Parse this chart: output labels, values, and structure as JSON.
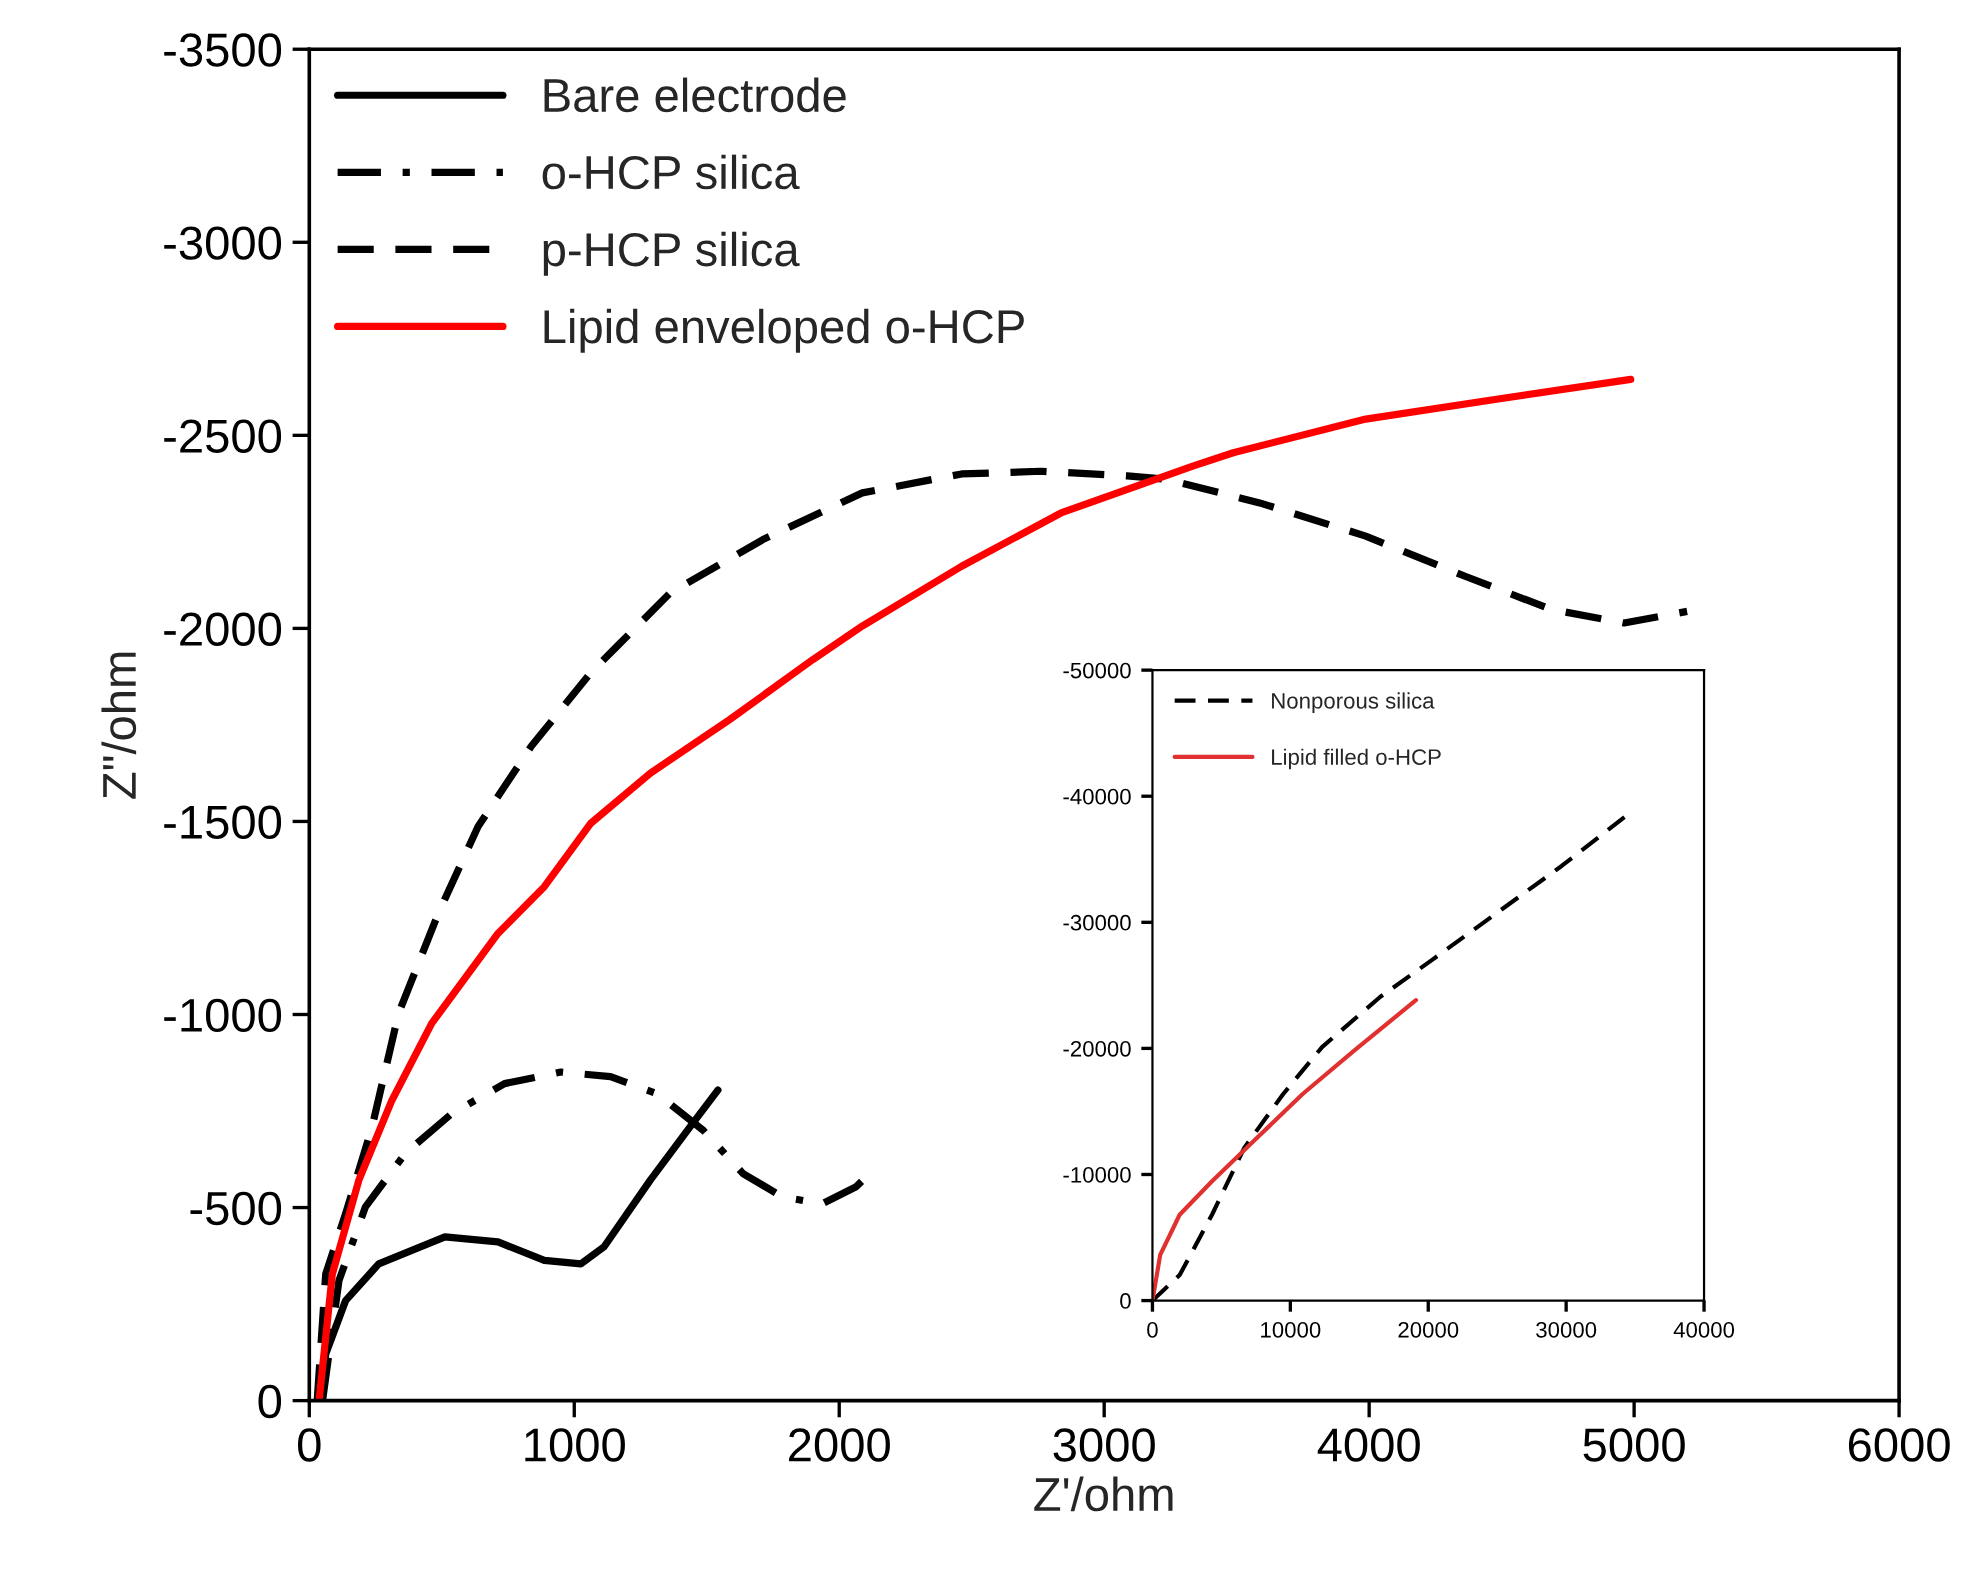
{
  "chart_data": [
    {
      "type": "line",
      "xlabel": "Z'/ohm",
      "ylabel": "Z\"/ohm",
      "xlim": [
        0,
        6000
      ],
      "ylim": [
        0,
        -3500
      ],
      "xticks": [
        0,
        1000,
        2000,
        3000,
        4000,
        5000,
        6000
      ],
      "yticks": [
        0,
        -500,
        -1000,
        -1500,
        -2000,
        -2500,
        -3000,
        -3500
      ],
      "grid": false,
      "legend": "top left",
      "marker": "none",
      "series": [
        {
          "name": "Bare electrode",
          "color": "#000000",
          "line_style": "solid",
          "x": [
            43,
            62,
            137,
            262,
            512,
            712,
            887,
            1025,
            1112,
            1287,
            1437,
            1542
          ],
          "values": [
            0,
            -121,
            -259,
            -354,
            -424,
            -411,
            -363,
            -354,
            -398,
            -571,
            -709,
            -804
          ]
        },
        {
          "name": "o-HCP silica",
          "color": "#000000",
          "line_style": "dashdot",
          "x": [
            50,
            112,
            212,
            362,
            537,
            737,
            950,
            1137,
            1312,
            1487,
            1637,
            1787,
            1937,
            2062,
            2120
          ],
          "values": [
            0,
            -311,
            -502,
            -640,
            -743,
            -821,
            -851,
            -839,
            -795,
            -700,
            -588,
            -527,
            -510,
            -553,
            -591
          ]
        },
        {
          "name": "p-HCP silica",
          "color": "#000000",
          "line_style": "dashed",
          "x": [
            30,
            62,
            137,
            237,
            337,
            487,
            637,
            837,
            1062,
            1162,
            1362,
            1712,
            2087,
            2462,
            2762,
            3087,
            3237,
            3587,
            3987,
            4362,
            4687,
            4962,
            5200
          ],
          "values": [
            0,
            -328,
            -484,
            -709,
            -1003,
            -1262,
            -1487,
            -1694,
            -1885,
            -1954,
            -2092,
            -2230,
            -2351,
            -2400,
            -2407,
            -2395,
            -2386,
            -2325,
            -2239,
            -2135,
            -2049,
            -2014,
            -2044
          ]
        },
        {
          "name": "Lipid enveloped o-HCP",
          "color": "#ff0000",
          "line_style": "solid",
          "x": [
            37,
            87,
            187,
            312,
            462,
            712,
            887,
            1062,
            1287,
            1587,
            1900,
            2087,
            2462,
            2837,
            3337,
            3487,
            3987,
            4487,
            4987
          ],
          "values": [
            0,
            -328,
            -571,
            -778,
            -977,
            -1210,
            -1331,
            -1495,
            -1625,
            -1764,
            -1919,
            -2006,
            -2161,
            -2299,
            -2421,
            -2455,
            -2542,
            -2594,
            -2645
          ]
        }
      ]
    },
    {
      "type": "line",
      "xlim": [
        0,
        40000
      ],
      "ylim": [
        0,
        -50000
      ],
      "xticks": [
        0,
        10000,
        20000,
        30000,
        40000
      ],
      "yticks": [
        0,
        -10000,
        -20000,
        -30000,
        -40000,
        -50000
      ],
      "grid": false,
      "legend": "top left",
      "marker": "none",
      "series": [
        {
          "name": "Nonporous silica",
          "color": "#000000",
          "line_style": "dashed",
          "x": [
            0,
            1972,
            4319,
            6667,
            9484,
            12300,
            16526,
            20282,
            24977,
            29671,
            34366
          ],
          "values": [
            0,
            -2021,
            -6809,
            -12128,
            -16383,
            -20106,
            -24096,
            -27021,
            -30745,
            -34468,
            -38457
          ]
        },
        {
          "name": "Lipid filled o-HCP",
          "color": "#e03030",
          "line_style": "solid",
          "x": [
            0,
            563,
            1972,
            4319,
            7606,
            10892,
            14648,
            19108
          ],
          "values": [
            0,
            -3617,
            -6809,
            -9468,
            -12926,
            -16383,
            -19840,
            -23830
          ]
        }
      ]
    }
  ]
}
